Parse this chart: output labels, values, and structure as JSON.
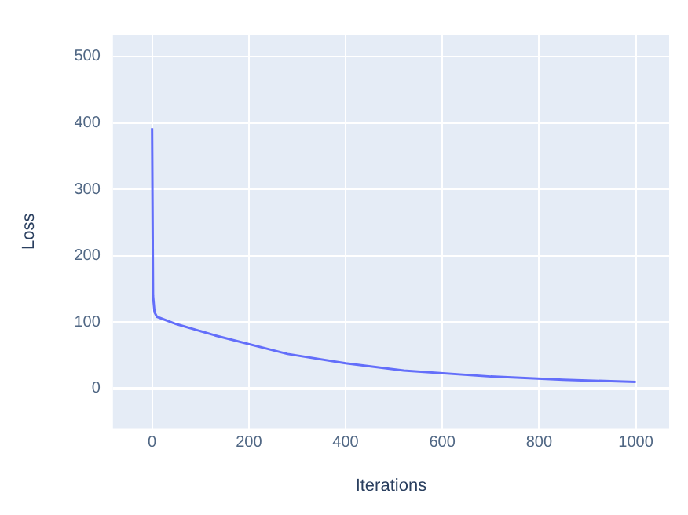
{
  "chart_data": {
    "type": "line",
    "xlabel": "Iterations",
    "ylabel": "Loss",
    "x": [
      0,
      2,
      5,
      10,
      50,
      130,
      280,
      400,
      520,
      700,
      850,
      1000
    ],
    "series": [
      {
        "color": "#636efa",
        "values": [
          392,
          140,
          115,
          108,
          97,
          80,
          52,
          38,
          27,
          18,
          13,
          10
        ]
      }
    ],
    "xlim": [
      -81,
      1069
    ],
    "ylim": [
      -60,
      533
    ],
    "xticks": [
      0,
      200,
      400,
      600,
      800,
      1000
    ],
    "yticks": [
      0,
      100,
      200,
      300,
      400,
      500
    ],
    "grid": true,
    "legend": false,
    "marker": "none",
    "line_style": "solid"
  }
}
